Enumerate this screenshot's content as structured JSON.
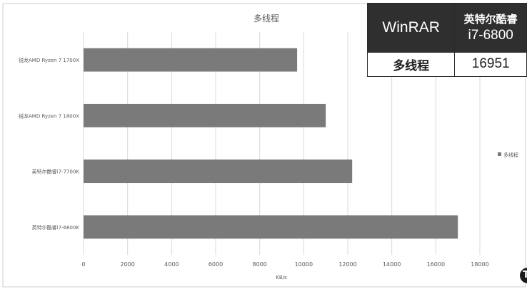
{
  "chart_data": {
    "type": "bar",
    "orientation": "horizontal",
    "title": "多线程",
    "xlabel": "KB/s",
    "ylabel": "",
    "categories": [
      "锐龙AMD Ryzen 7 1700X",
      "锐龙AMD Ryzen 7 1800X",
      "英特尔酷睿i7-7700K",
      "英特尔酷睿i7-6800K"
    ],
    "series": [
      {
        "name": "多线程",
        "values": [
          9700,
          11000,
          12200,
          17000
        ]
      }
    ],
    "xlim": [
      0,
      18000
    ],
    "xticks": [
      0,
      2000,
      4000,
      6000,
      8000,
      10000,
      12000,
      14000,
      16000,
      18000
    ],
    "grid": true,
    "legend": "right",
    "colors": {
      "bar": "#7a7a7a",
      "grid": "#d9d9d9",
      "text": "#595959"
    }
  },
  "overlay_table": {
    "header": {
      "app": "WinRAR",
      "brand": "英特尔酷睿",
      "model": "i7-6800"
    },
    "row": {
      "label": "多线程",
      "value": "16951"
    }
  }
}
